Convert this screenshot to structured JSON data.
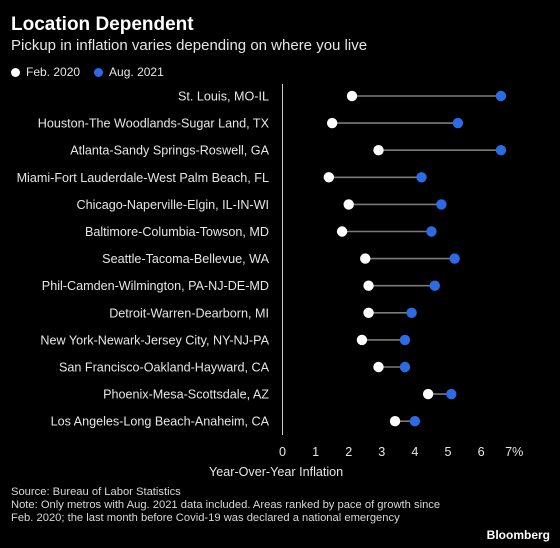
{
  "header": {
    "title": "Location Dependent",
    "subtitle": "Pickup in inflation varies depending on where you live"
  },
  "colors": {
    "background": "#000000",
    "feb2020": "#ffffff",
    "aug2021": "#2d6be4",
    "connector": "#7a7a7a",
    "axis": "#cccccc"
  },
  "chart_data": {
    "type": "dumbbell",
    "title": "Location Dependent",
    "subtitle": "Pickup in inflation varies depending on where you live",
    "xlabel": "Year-Over-Year Inflation",
    "xlim": [
      0,
      7
    ],
    "xticks": [
      0,
      1,
      2,
      3,
      4,
      5,
      6,
      7
    ],
    "xtick_labels": [
      "0",
      "1",
      "2",
      "3",
      "4",
      "5",
      "6",
      "7%"
    ],
    "grid": false,
    "legend": "top-left",
    "categories": [
      "St. Louis, MO-IL",
      "Houston-The Woodlands-Sugar Land, TX",
      "Atlanta-Sandy Springs-Roswell, GA",
      "Miami-Fort Lauderdale-West Palm Beach, FL",
      "Chicago-Naperville-Elgin, IL-IN-WI",
      "Baltimore-Columbia-Towson, MD",
      "Seattle-Tacoma-Bellevue, WA",
      "Phil-Camden-Wilmington, PA-NJ-DE-MD",
      "Detroit-Warren-Dearborn, MI",
      "New York-Newark-Jersey City, NY-NJ-PA",
      "San Francisco-Oakland-Hayward, CA",
      "Phoenix-Mesa-Scottsdale, AZ",
      "Los Angeles-Long Beach-Anaheim, CA"
    ],
    "series": [
      {
        "name": "Feb. 2020",
        "values": [
          2.1,
          1.5,
          2.9,
          1.4,
          2.0,
          1.8,
          2.5,
          2.6,
          2.6,
          2.4,
          2.9,
          4.4,
          3.4
        ]
      },
      {
        "name": "Aug. 2021",
        "values": [
          6.6,
          5.3,
          6.6,
          4.2,
          4.8,
          4.5,
          5.2,
          4.6,
          3.9,
          3.7,
          3.7,
          5.1,
          4.0
        ]
      }
    ]
  },
  "footer": {
    "source": "Source: Bureau of Labor Statistics",
    "note": "Note: Only metros with Aug. 2021 data included. Areas ranked by pace of growth since Feb. 2020; the last month before Covid-19 was declared a national emergency",
    "brand": "Bloomberg"
  }
}
